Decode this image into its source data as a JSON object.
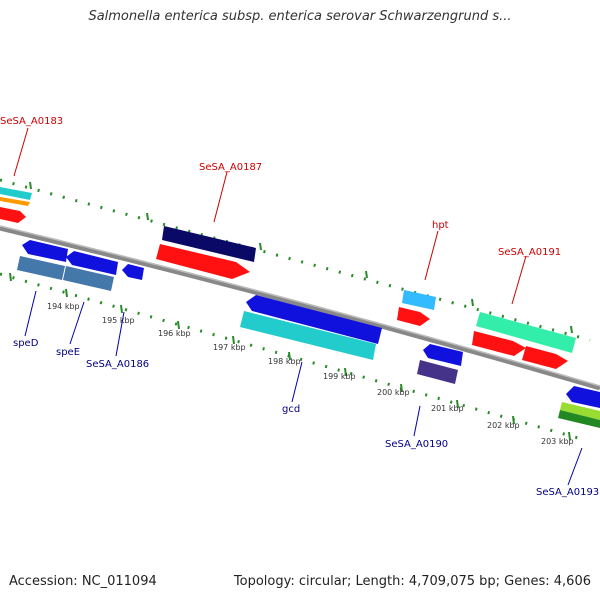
{
  "title": "Salmonella enterica subsp. enterica serovar Schwarzengrund s...",
  "footer": {
    "accession": "Accession: NC_011094",
    "summary": "Topology: circular; Length: 4,709,075 bp; Genes: 4,606"
  },
  "colors": {
    "backbone": "#888888",
    "tick_dots": "#2a8a2a",
    "label_top": "#cc0000",
    "label_bottom": "#000080"
  },
  "ticks": [
    "194 kbp",
    "195 kbp",
    "196 kbp",
    "197 kbp",
    "198 kbp",
    "199 kbp",
    "200 kbp",
    "201 kbp",
    "202 kbp",
    "203 kbp"
  ],
  "gene_labels_top": [
    "SeSA_A0183",
    "SeSA_A0187",
    "hpt",
    "SeSA_A0191"
  ],
  "gene_labels_bottom": [
    "speD",
    "speE",
    "SeSA_A0186",
    "gcd",
    "SeSA_A0190",
    "SeSA_A0193"
  ]
}
